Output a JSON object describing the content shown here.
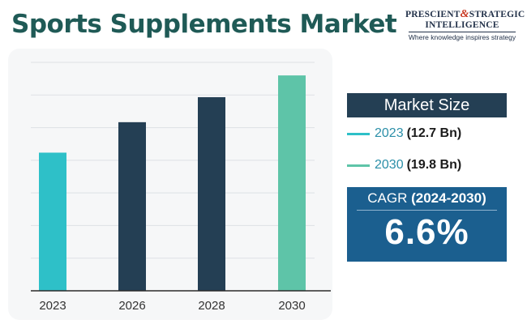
{
  "header": {
    "title": "Sports Supplements Market"
  },
  "logo": {
    "line1_a": "PRESCIENT",
    "amp": "&",
    "line1_b": "STRATEGIC",
    "line2": "INTELLIGENCE",
    "tagline": "Where knowledge inspires strategy"
  },
  "summary": {
    "heading": "Market Size",
    "items": [
      {
        "year": "2023",
        "value": "(12.7 Bn)",
        "color": "#2ec0c8"
      },
      {
        "year": "2030",
        "value": "(19.8 Bn)",
        "color": "#5ec4a8"
      }
    ]
  },
  "cagr": {
    "label": "CAGR",
    "period": "(2024-2030)",
    "value": "6.6%"
  },
  "chart_data": {
    "type": "bar",
    "categories": [
      "2023",
      "2026",
      "2028",
      "2030"
    ],
    "values": [
      12.7,
      15.5,
      17.8,
      19.8
    ],
    "colors": [
      "#2ec0c8",
      "#243f54",
      "#243f54",
      "#5ec4a8"
    ],
    "title": "",
    "xlabel": "",
    "ylabel": "",
    "ylim": [
      0,
      21
    ],
    "grid": true,
    "gridline_count": 7
  }
}
